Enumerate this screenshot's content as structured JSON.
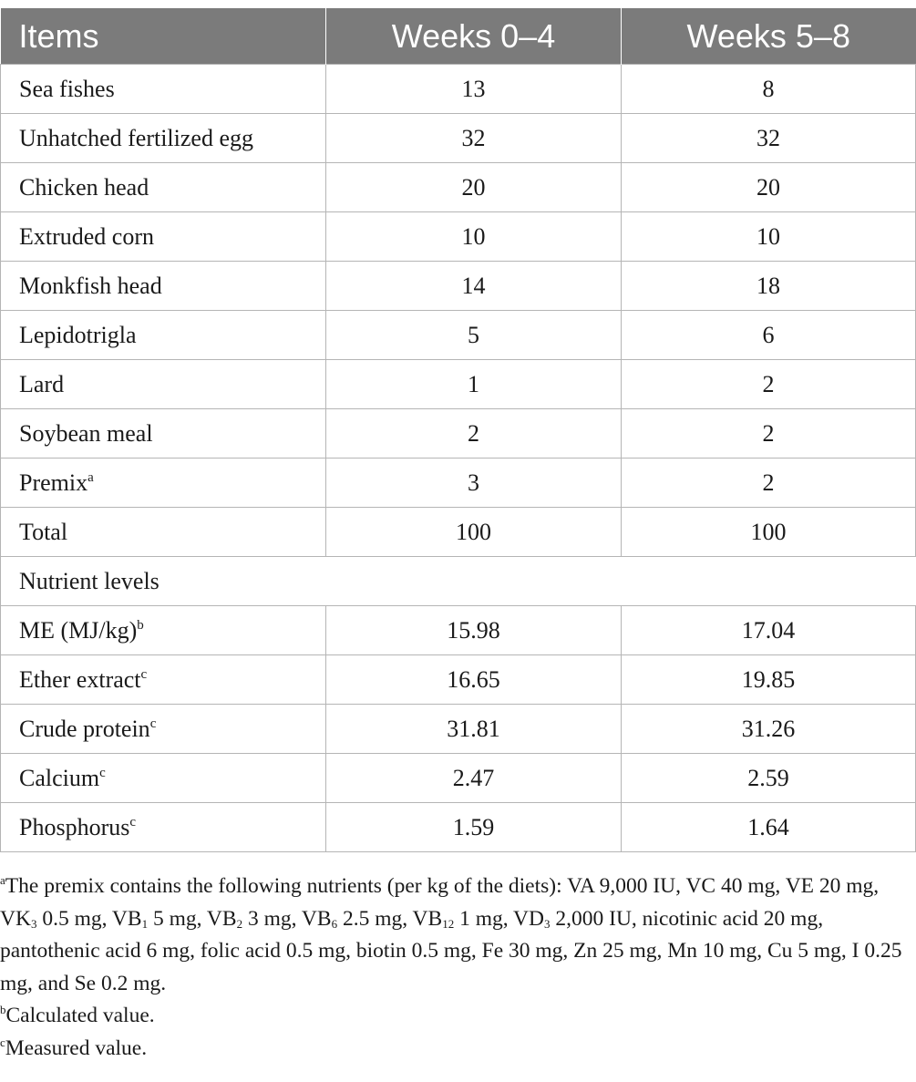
{
  "table": {
    "headers": [
      "Items",
      "Weeks 0–4",
      "Weeks 5–8"
    ],
    "rows": [
      {
        "label": "Sea fishes",
        "w1": "13",
        "w2": "8"
      },
      {
        "label": "Unhatched fertilized egg",
        "w1": "32",
        "w2": "32"
      },
      {
        "label": "Chicken head",
        "w1": "20",
        "w2": "20"
      },
      {
        "label": "Extruded corn",
        "w1": "10",
        "w2": "10"
      },
      {
        "label": "Monkfish head",
        "w1": "14",
        "w2": "18"
      },
      {
        "label": "Lepidotrigla",
        "w1": "5",
        "w2": "6"
      },
      {
        "label": "Lard",
        "w1": "1",
        "w2": "2"
      },
      {
        "label": "Soybean meal",
        "w1": "2",
        "w2": "2"
      },
      {
        "label": "Premix",
        "sup": "a",
        "w1": "3",
        "w2": "2"
      },
      {
        "label": "Total",
        "w1": "100",
        "w2": "100"
      }
    ],
    "section_label": "Nutrient levels",
    "nutrient_rows": [
      {
        "label": "ME (MJ/kg)",
        "sup": "b",
        "w1": "15.98",
        "w2": "17.04"
      },
      {
        "label": "Ether extract",
        "sup": "c",
        "w1": "16.65",
        "w2": "19.85"
      },
      {
        "label": "Crude protein",
        "sup": "c",
        "w1": "31.81",
        "w2": "31.26"
      },
      {
        "label": "Calcium",
        "sup": "c",
        "w1": "2.47",
        "w2": "2.59"
      },
      {
        "label": "Phosphorus",
        "sup": "c",
        "w1": "1.59",
        "w2": "1.64"
      }
    ]
  },
  "footnotes": {
    "a": {
      "marker": "a",
      "t1": "The premix contains the following nutrients (per kg of the diets): VA 9,000 IU, VC 40 mg, VE 20 mg, VK",
      "s1": "3",
      "t2": " 0.5 mg, VB",
      "s2": "1",
      "t3": " 5 mg, VB",
      "s3": "2",
      "t4": " 3 mg, VB",
      "s4": "6",
      "t5": " 2.5 mg, VB",
      "s5": "12",
      "t6": " 1 mg, VD",
      "s6": "3",
      "t7": " 2,000 IU, nicotinic acid 20 mg, pantothenic acid 6 mg, folic acid 0.5 mg, biotin 0.5 mg, Fe 30 mg, Zn 25 mg, Mn 10 mg, Cu 5 mg, I 0.25 mg, and Se 0.2 mg."
    },
    "b": {
      "marker": "b",
      "text": "Calculated value."
    },
    "c": {
      "marker": "c",
      "text": "Measured value."
    }
  }
}
